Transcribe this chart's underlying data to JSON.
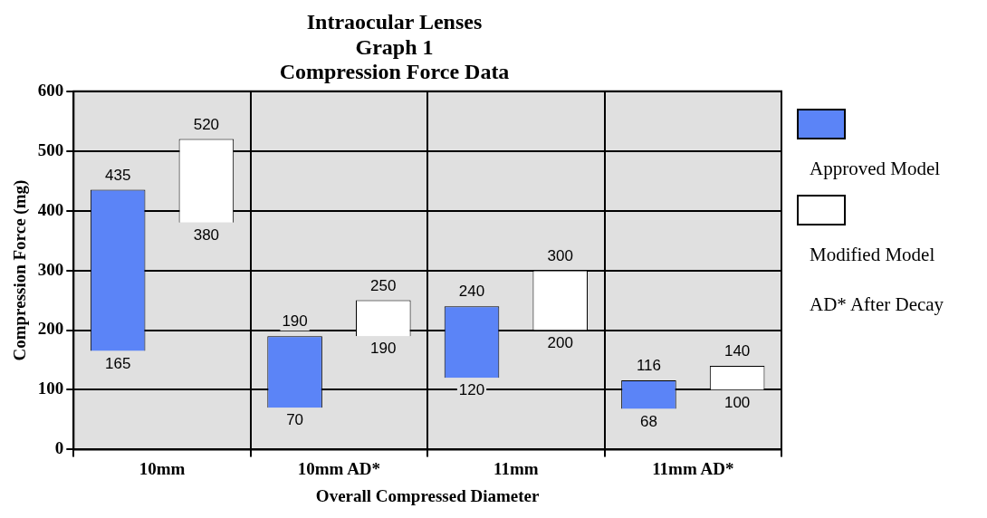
{
  "chart_data": {
    "type": "bar",
    "title": "Intraocular Lenses\nGraph 1\nCompression Force Data",
    "xlabel": "Overall Compressed Diameter",
    "ylabel": "Compression Force (mg)",
    "categories": [
      "10mm",
      "10mm AD*",
      "11mm",
      "11mm AD*"
    ],
    "series": [
      {
        "name": "Approved Model",
        "color": "#5b84f7",
        "base": [
          165,
          70,
          120,
          68
        ],
        "values": [
          270,
          120,
          120,
          48
        ]
      },
      {
        "name": "Modified Model",
        "color": "#ffffff",
        "base": [
          380,
          190,
          200,
          100
        ],
        "values": [
          140,
          60,
          100,
          40
        ]
      }
    ],
    "ylim": [
      0,
      600
    ],
    "yticks": [
      0,
      100,
      200,
      300,
      400,
      500,
      600
    ],
    "grid": true,
    "legend": "right",
    "annotations": [
      "435",
      "165",
      "520",
      "380",
      "190",
      "70",
      "250",
      "190",
      "240",
      "120",
      "300",
      "200",
      "116",
      "68",
      "140",
      "100",
      "AD* After Decay"
    ]
  }
}
